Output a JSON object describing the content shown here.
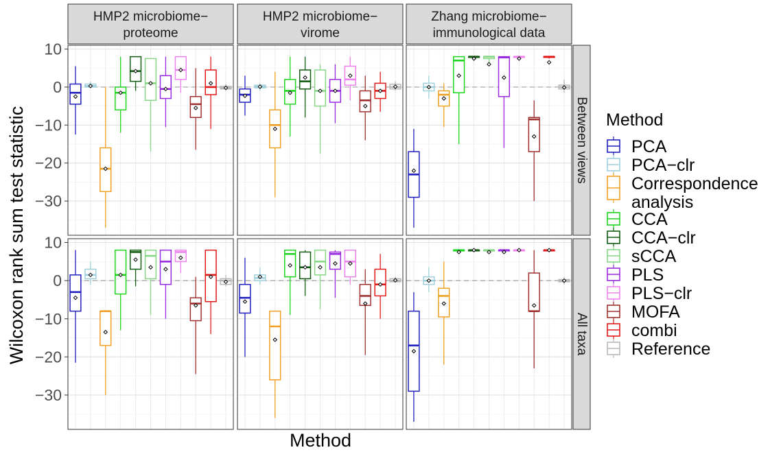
{
  "chart_data": {
    "type": "box",
    "xlabel": "Method",
    "ylabel": "Wilcoxon rank sum test statistic",
    "ylim": [
      -39,
      11
    ],
    "y_ticks": [
      10,
      0,
      -10,
      -20,
      -30
    ],
    "grid": true,
    "reference_line_y": 0,
    "legend_position": "right",
    "legend_title": "Method",
    "methods": [
      {
        "name": "PCA",
        "color": "#1f1fbf"
      },
      {
        "name": "PCA−clr",
        "color": "#9fd0dc"
      },
      {
        "name": "Correspondence\nanalysis",
        "color": "#f0a020"
      },
      {
        "name": "CCA",
        "color": "#1cd41c"
      },
      {
        "name": "CCA−clr",
        "color": "#115c11"
      },
      {
        "name": "sCCA",
        "color": "#86d686"
      },
      {
        "name": "PLS",
        "color": "#9a2ae0"
      },
      {
        "name": "PLS−clr",
        "color": "#ec82ec"
      },
      {
        "name": "MOFA",
        "color": "#a03030"
      },
      {
        "name": "combi",
        "color": "#e01818"
      },
      {
        "name": "Reference",
        "color": "#b8b8b8"
      }
    ],
    "columns": [
      "HMP2 microbiome−\nproteome",
      "HMP2 microbiome−\nvirome",
      "Zhang microbiome−\nimmunological data"
    ],
    "rows": [
      "Between views",
      "All taxa"
    ],
    "panels": [
      [
        [
          {
            "min": -12.5,
            "q1": -4.5,
            "median": -1.5,
            "q3": 0.8,
            "max": 5.5,
            "mean": -2.5
          },
          {
            "min": -0.3,
            "q1": 0,
            "median": 0.3,
            "q3": 0.8,
            "max": 1.5,
            "mean": 0.3
          },
          {
            "min": -37,
            "q1": -27.5,
            "median": -21.5,
            "q3": -16,
            "max": 0,
            "mean": -21.5
          },
          {
            "min": -12,
            "q1": -6,
            "median": -1.5,
            "q3": 0,
            "max": 8,
            "mean": -1.5
          },
          {
            "min": -1,
            "q1": 1.5,
            "median": 4.2,
            "q3": 8,
            "max": 8,
            "mean": 4.2
          },
          {
            "min": -17,
            "q1": -3.5,
            "median": 1,
            "q3": 7.5,
            "max": 7.5,
            "mean": 1
          },
          {
            "min": -10.5,
            "q1": -3,
            "median": -0.5,
            "q3": 3,
            "max": 8,
            "mean": -0.5
          },
          {
            "min": -1.5,
            "q1": 2,
            "median": 4.5,
            "q3": 8,
            "max": 8,
            "mean": 4.5
          },
          {
            "min": -16.5,
            "q1": -8,
            "median": -4.5,
            "q3": -2.5,
            "max": 5,
            "mean": -5.5
          },
          {
            "min": -11,
            "q1": -2,
            "median": 0,
            "q3": 4.5,
            "max": 8,
            "mean": 1
          },
          {
            "min": -1,
            "q1": -0.5,
            "median": -0.2,
            "q3": 0.2,
            "max": 0.8,
            "mean": -0.2
          }
        ],
        [
          {
            "min": -7.5,
            "q1": -4,
            "median": -2,
            "q3": -0.5,
            "max": 3,
            "mean": -2.3
          },
          {
            "min": -1,
            "q1": -0.2,
            "median": 0.1,
            "q3": 0.5,
            "max": 1,
            "mean": 0.1
          },
          {
            "min": -29,
            "q1": -16,
            "median": -10,
            "q3": -6,
            "max": 4,
            "mean": -11
          },
          {
            "min": -13,
            "q1": -4.5,
            "median": -1,
            "q3": 2,
            "max": 8,
            "mean": -1.5
          },
          {
            "min": -8,
            "q1": -0.5,
            "median": 1.5,
            "q3": 4.5,
            "max": 8,
            "mean": 2.5
          },
          {
            "min": -17.5,
            "q1": -5,
            "median": -1,
            "q3": 4.5,
            "max": 6,
            "mean": -1
          },
          {
            "min": -9.5,
            "q1": -4,
            "median": -1,
            "q3": 2,
            "max": 6,
            "mean": -1
          },
          {
            "min": -3.5,
            "q1": 0.5,
            "median": 2,
            "q3": 5.5,
            "max": 8,
            "mean": 3
          },
          {
            "min": -14,
            "q1": -6.5,
            "median": -3.5,
            "q3": -1,
            "max": 3,
            "mean": -5
          },
          {
            "min": -6.5,
            "q1": -3,
            "median": -1,
            "q3": 1,
            "max": 4,
            "mean": -1
          },
          {
            "min": -1,
            "q1": -0.5,
            "median": 0,
            "q3": 0.7,
            "max": 1.5,
            "mean": 0.1
          }
        ],
        [
          {
            "min": -37,
            "q1": -29,
            "median": -23,
            "q3": -17,
            "max": -11,
            "mean": -22
          },
          {
            "min": -3,
            "q1": -1,
            "median": 0,
            "q3": 1,
            "max": 3,
            "mean": 0
          },
          {
            "min": -10.5,
            "q1": -5,
            "median": -2,
            "q3": -1,
            "max": 1,
            "mean": -3
          },
          {
            "min": -15,
            "q1": -1.5,
            "median": 7,
            "q3": 8,
            "max": 8,
            "mean": 3
          },
          {
            "min": 7.5,
            "q1": 7.8,
            "median": 8,
            "q3": 8,
            "max": 8,
            "mean": 7.5
          },
          {
            "min": 6,
            "q1": 7.5,
            "median": 8,
            "q3": 8,
            "max": 8,
            "mean": 6
          },
          {
            "min": -16,
            "q1": -2.5,
            "median": 7.8,
            "q3": 8,
            "max": 8,
            "mean": 2.5
          },
          {
            "min": 7.5,
            "q1": 7.8,
            "median": 8,
            "q3": 8,
            "max": 8,
            "mean": 7.5
          },
          {
            "min": -30,
            "q1": -17,
            "median": -8.5,
            "q3": -8,
            "max": -3.5,
            "mean": -13
          },
          {
            "min": 7.5,
            "q1": 7.8,
            "median": 8,
            "q3": 8,
            "max": 8,
            "mean": 6.5
          },
          {
            "min": -1.5,
            "q1": -0.5,
            "median": 0,
            "q3": 0.5,
            "max": 2,
            "mean": -0.1
          }
        ]
      ],
      [
        [
          {
            "min": -21.5,
            "q1": -8,
            "median": -3,
            "q3": 1.5,
            "max": 8,
            "mean": -4.5
          },
          {
            "min": -1,
            "q1": 0.5,
            "median": 1.5,
            "q3": 3,
            "max": 5,
            "mean": 1.5
          },
          {
            "min": -30,
            "q1": -17,
            "median": -8,
            "q3": -8,
            "max": -8,
            "mean": -13.5
          },
          {
            "min": -13,
            "q1": -3.5,
            "median": 1.5,
            "q3": 8,
            "max": 8,
            "mean": 1.5
          },
          {
            "min": -1.5,
            "q1": 3,
            "median": 7.5,
            "q3": 8,
            "max": 8,
            "mean": 5.5
          },
          {
            "min": -9,
            "q1": 0.5,
            "median": 6.5,
            "q3": 8,
            "max": 8,
            "mean": 3.5
          },
          {
            "min": -10,
            "q1": -1,
            "median": 5,
            "q3": 8,
            "max": 8,
            "mean": 3
          },
          {
            "min": 2,
            "q1": 5,
            "median": 7.5,
            "q3": 8,
            "max": 8,
            "mean": 6
          },
          {
            "min": -24.5,
            "q1": -10.5,
            "median": -6,
            "q3": -4.5,
            "max": 1,
            "mean": -6.5
          },
          {
            "min": -14,
            "q1": -5.5,
            "median": 1.5,
            "q3": 8,
            "max": 8,
            "mean": 1
          },
          {
            "min": -1.5,
            "q1": -1,
            "median": 0,
            "q3": 0.5,
            "max": 1.5,
            "mean": -0.3
          }
        ],
        [
          {
            "min": -20,
            "q1": -8.5,
            "median": -4.5,
            "q3": -1,
            "max": 6,
            "mean": -5.5
          },
          {
            "min": -1,
            "q1": 0,
            "median": 0.7,
            "q3": 1.5,
            "max": 3.5,
            "mean": 1
          },
          {
            "min": -36,
            "q1": -26,
            "median": -12,
            "q3": -8,
            "max": -8,
            "mean": -15.5
          },
          {
            "min": -9,
            "q1": 1,
            "median": 7,
            "q3": 8,
            "max": 8,
            "mean": 4
          },
          {
            "min": -4,
            "q1": 0.5,
            "median": 3.5,
            "q3": 7.5,
            "max": 8,
            "mean": 3.5
          },
          {
            "min": -7.5,
            "q1": 1.5,
            "median": 5,
            "q3": 8,
            "max": 8,
            "mean": 3.5
          },
          {
            "min": -4.5,
            "q1": 3,
            "median": 7,
            "q3": 7.5,
            "max": 8,
            "mean": 4.5
          },
          {
            "min": -1,
            "q1": 1,
            "median": 5,
            "q3": 8,
            "max": 8,
            "mean": 4.5
          },
          {
            "min": -19.5,
            "q1": -6.5,
            "median": -4,
            "q3": -1,
            "max": 3,
            "mean": -6
          },
          {
            "min": -10,
            "q1": -4,
            "median": -1,
            "q3": 3,
            "max": 7,
            "mean": -1
          },
          {
            "min": -0.5,
            "q1": -0.3,
            "median": 0,
            "q3": 0.5,
            "max": 1,
            "mean": 0.1
          }
        ],
        [
          {
            "min": -37,
            "q1": -29,
            "median": -17,
            "q3": -8,
            "max": -3,
            "mean": -18.5
          },
          {
            "min": -3,
            "q1": -1,
            "median": 0,
            "q3": 1,
            "max": 3.5,
            "mean": 0
          },
          {
            "min": -22,
            "q1": -9.5,
            "median": -4,
            "q3": -2,
            "max": 5,
            "mean": -6
          },
          {
            "min": 7.5,
            "q1": 7.8,
            "median": 8,
            "q3": 8,
            "max": 8,
            "mean": 7.5
          },
          {
            "min": 7.5,
            "q1": 7.8,
            "median": 8,
            "q3": 8,
            "max": 8,
            "mean": 8
          },
          {
            "min": 7.5,
            "q1": 7.8,
            "median": 8,
            "q3": 8,
            "max": 8,
            "mean": 7.5
          },
          {
            "min": 7.5,
            "q1": 7.8,
            "median": 8,
            "q3": 8,
            "max": 8,
            "mean": 7.5
          },
          {
            "min": 7.5,
            "q1": 7.8,
            "median": 8,
            "q3": 8,
            "max": 8,
            "mean": 8
          },
          {
            "min": -23,
            "q1": -8,
            "median": -8,
            "q3": 2,
            "max": 8,
            "mean": -6.5
          },
          {
            "min": 7.5,
            "q1": 7.8,
            "median": 8,
            "q3": 8,
            "max": 8,
            "mean": 8
          },
          {
            "min": -1,
            "q1": -0.3,
            "median": 0,
            "q3": 0.3,
            "max": 1,
            "mean": 0
          }
        ]
      ]
    ]
  }
}
